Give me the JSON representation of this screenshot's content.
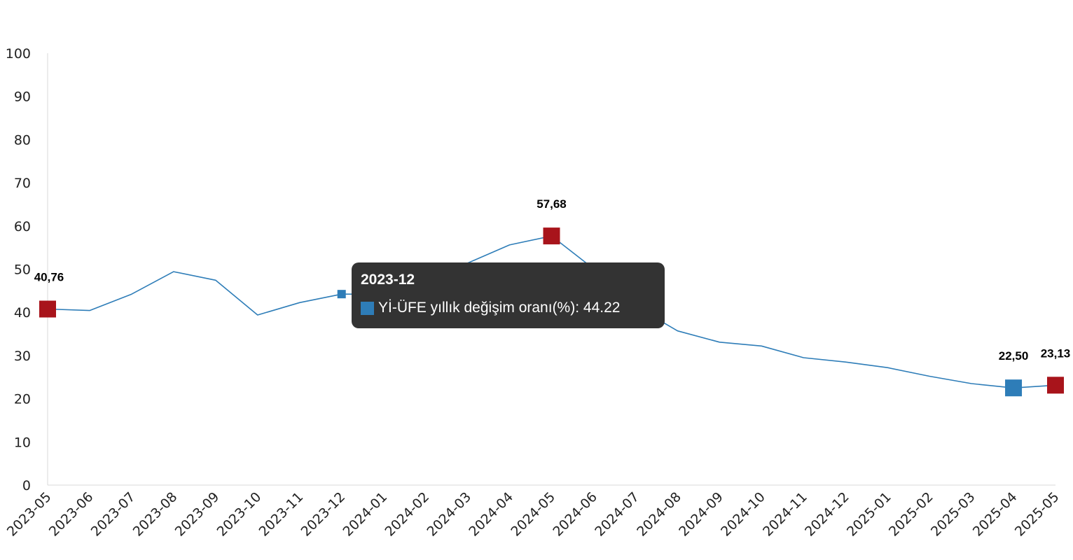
{
  "chart_data": {
    "type": "line",
    "title": "",
    "xlabel": "",
    "ylabel": "",
    "ylim": [
      0,
      100
    ],
    "yticks": [
      "0",
      "10",
      "20",
      "30",
      "40",
      "50",
      "60",
      "70",
      "80",
      "90",
      "100"
    ],
    "grid": false,
    "categories": [
      "2023-05",
      "2023-06",
      "2023-07",
      "2023-08",
      "2023-09",
      "2023-10",
      "2023-11",
      "2023-12",
      "2024-01",
      "2024-02",
      "2024-03",
      "2024-04",
      "2024-05",
      "2024-06",
      "2024-07",
      "2024-08",
      "2024-09",
      "2024-10",
      "2024-11",
      "2024-12",
      "2025-01",
      "2025-02",
      "2025-03",
      "2025-04",
      "2025-05"
    ],
    "series": [
      {
        "name": "Yİ-ÜFE yıllık değişim oranı(%)",
        "color": "#2E7DB8",
        "values": [
          40.76,
          40.42,
          44.22,
          49.41,
          47.44,
          39.39,
          42.25,
          44.22,
          44.2,
          47.3,
          51.4,
          55.6,
          57.68,
          50.1,
          41.4,
          35.7,
          33.1,
          32.2,
          29.5,
          28.5,
          27.2,
          25.2,
          23.5,
          22.5,
          23.13
        ]
      }
    ],
    "highlights": [
      {
        "index": 0,
        "label": "40,76",
        "color": "#A8141B"
      },
      {
        "index": 12,
        "label": "57,68",
        "color": "#A8141B"
      },
      {
        "index": 23,
        "label": "22,50",
        "color": "#2E7DB8"
      },
      {
        "index": 24,
        "label": "23,13",
        "color": "#A8141B"
      }
    ],
    "hover_index": 7,
    "axis_color": "#D9D9D9",
    "line_color": "#2E7DB8"
  },
  "tooltip": {
    "title": "2023-12",
    "series_name": "Yİ-ÜFE yıllık değişim oranı(%)",
    "value": "44.22",
    "text": "Yİ-ÜFE yıllık değişim oranı(%): 44.22",
    "swatch_color": "#2E7DB8"
  }
}
